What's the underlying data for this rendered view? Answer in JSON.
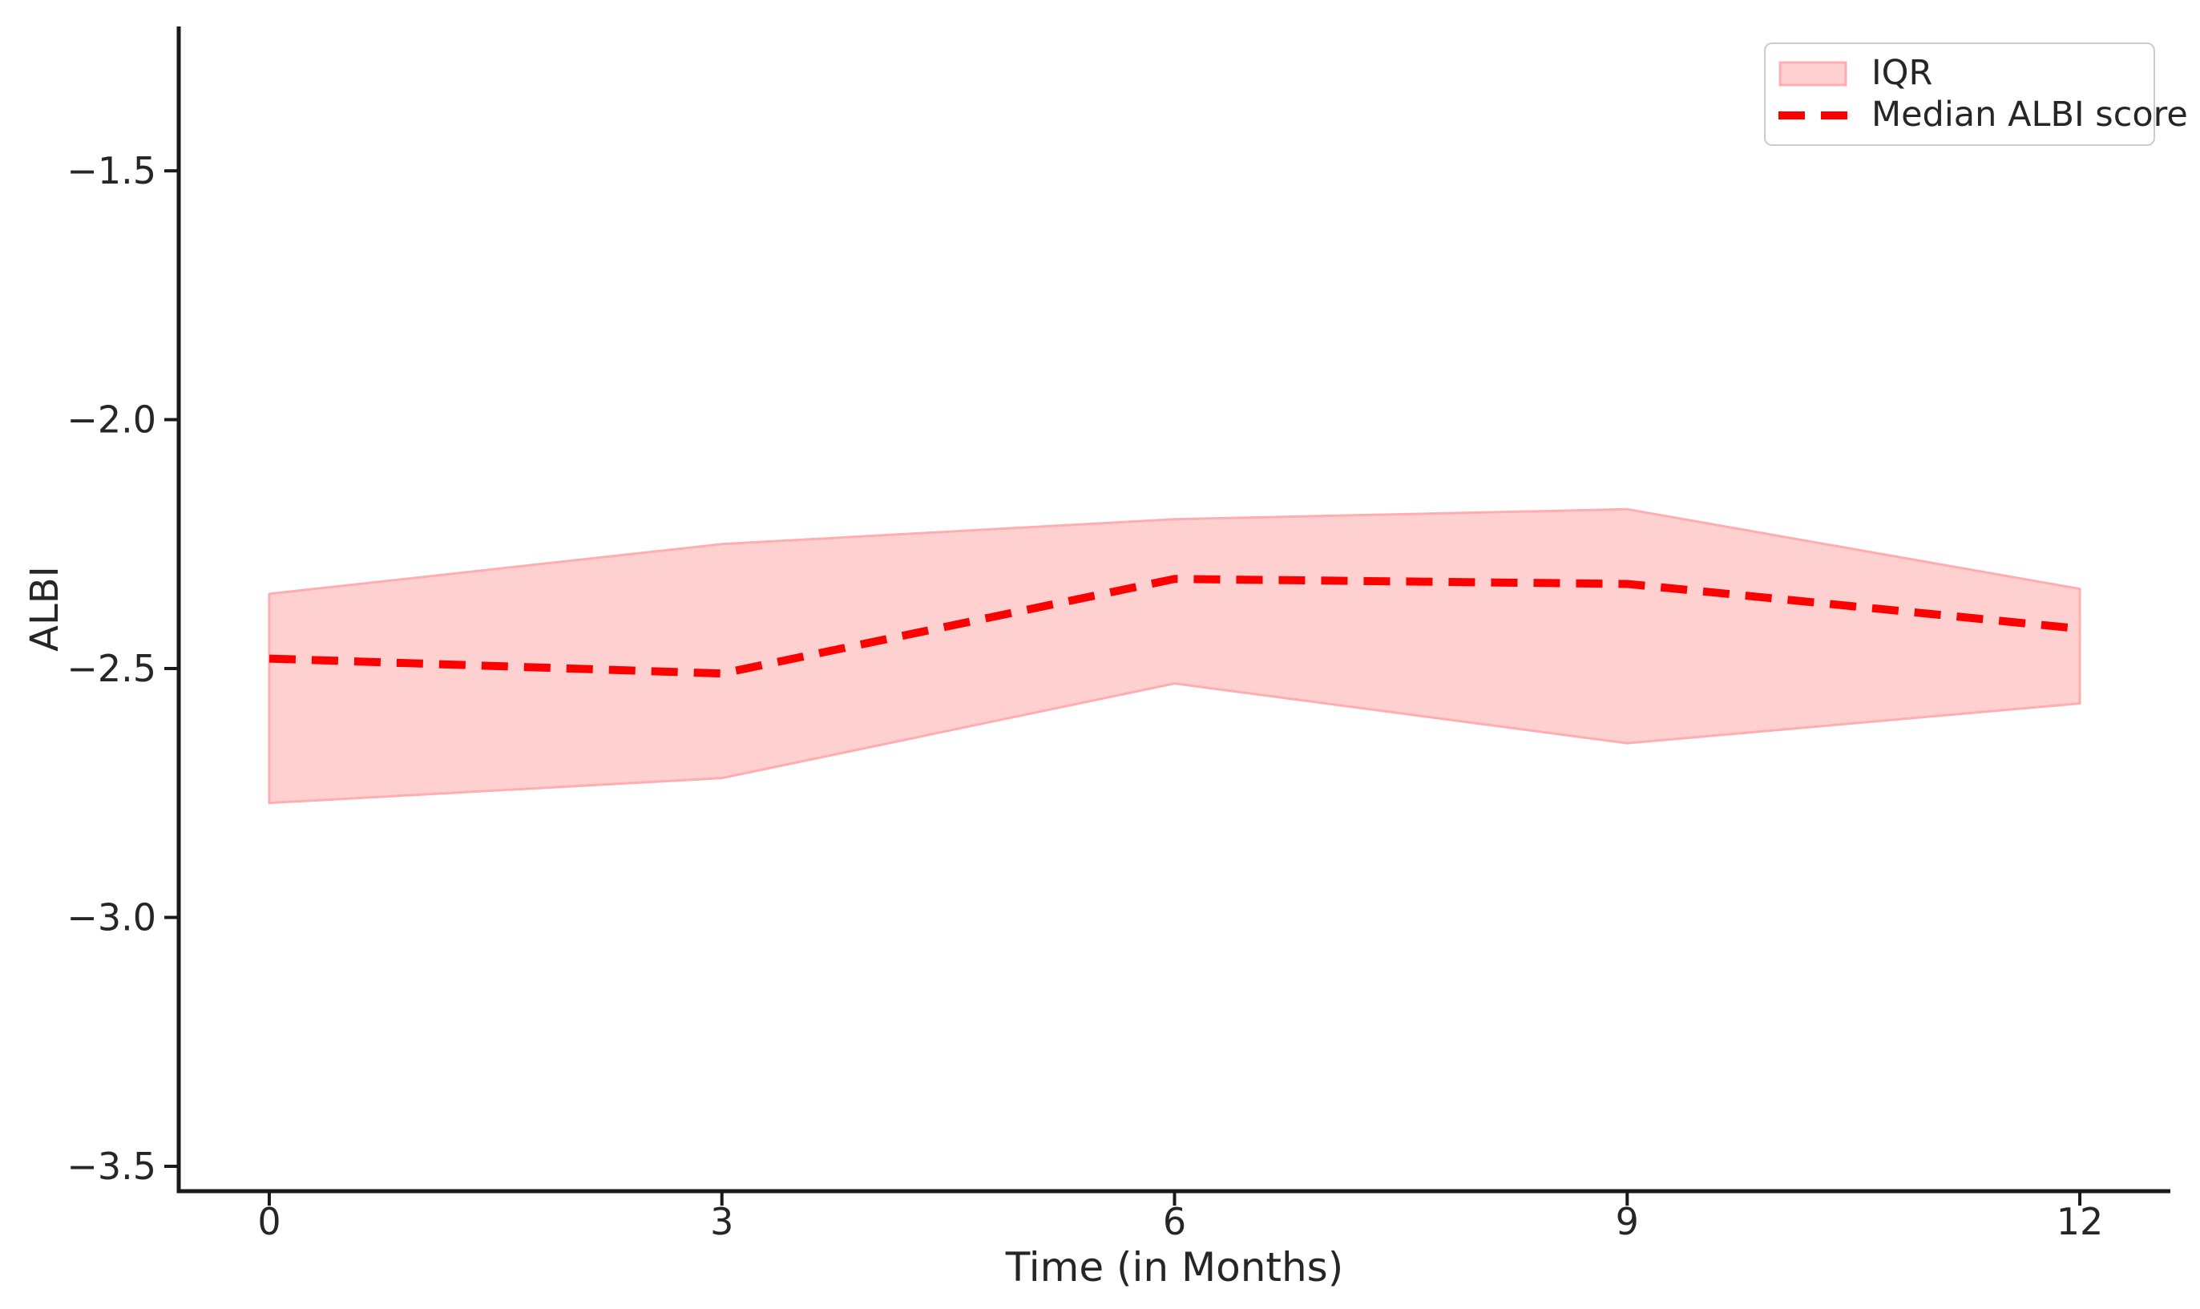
{
  "chart_data": {
    "type": "line",
    "title": "",
    "xlabel": "Time (in Months)",
    "ylabel": "ALBI",
    "x": [
      0,
      3,
      6,
      9,
      12
    ],
    "series": [
      {
        "name": "Median ALBI score",
        "values": [
          -2.48,
          -2.51,
          -2.32,
          -2.33,
          -2.42
        ],
        "style": "dashed",
        "color": "#ff0000"
      }
    ],
    "band": {
      "name": "IQR",
      "upper": [
        -2.35,
        -2.25,
        -2.2,
        -2.18,
        -2.34
      ],
      "lower": [
        -2.77,
        -2.72,
        -2.53,
        -2.65,
        -2.57
      ]
    },
    "xticks": {
      "values": [
        0,
        3,
        6,
        9,
        12
      ],
      "labels": [
        "0",
        "3",
        "6",
        "9",
        "12"
      ]
    },
    "yticks": {
      "values": [
        -1.5,
        -2.0,
        -2.5,
        -3.0,
        -3.5
      ],
      "labels": [
        "−1.5",
        "−2.0",
        "−2.5",
        "−3.0",
        "−3.5"
      ]
    },
    "xlim": [
      -0.6,
      12.6
    ],
    "ylim": [
      -3.55,
      -1.21
    ],
    "grid": false,
    "legend": {
      "position": "upper right",
      "items": [
        {
          "label": "IQR",
          "type": "patch"
        },
        {
          "label": "Median ALBI score",
          "type": "dashed-line"
        }
      ]
    },
    "colors": {
      "line": "#ff0000",
      "band_fill": "#ffd0d0",
      "band_edge": "#ffadb0",
      "axis": "#1a1a1a",
      "text": "#262626",
      "legend_border": "#cccccc"
    }
  }
}
